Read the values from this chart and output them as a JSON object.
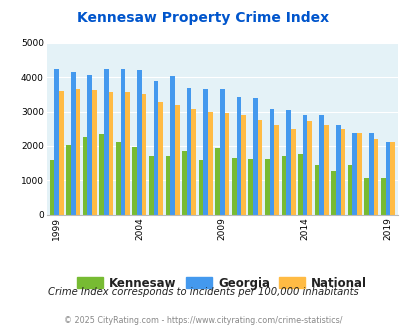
{
  "title": "Kennesaw Property Crime Index",
  "title_color": "#0055cc",
  "years": [
    1999,
    2000,
    2001,
    2002,
    2003,
    2004,
    2005,
    2006,
    2007,
    2008,
    2009,
    2010,
    2011,
    2012,
    2013,
    2014,
    2015,
    2016,
    2017,
    2018,
    2019
  ],
  "kennesaw": [
    1600,
    2030,
    2260,
    2360,
    2100,
    1980,
    1700,
    1700,
    1850,
    1590,
    1950,
    1640,
    1620,
    1610,
    1700,
    1760,
    1450,
    1260,
    1440,
    1050,
    1060
  ],
  "georgia": [
    4250,
    4140,
    4060,
    4250,
    4230,
    4200,
    3900,
    4040,
    3700,
    3670,
    3650,
    3430,
    3380,
    3060,
    3040,
    2900,
    2900,
    2600,
    2380,
    2380,
    2120
  ],
  "national": [
    3610,
    3650,
    3640,
    3580,
    3560,
    3510,
    3270,
    3200,
    3070,
    2980,
    2960,
    2900,
    2760,
    2600,
    2500,
    2720,
    2610,
    2490,
    2370,
    2200,
    2120
  ],
  "kennesaw_color": "#77bb33",
  "georgia_color": "#4499ee",
  "national_color": "#ffbb44",
  "bg_color": "#e4f2f7",
  "fig_bg": "#ffffff",
  "ylim": [
    0,
    5000
  ],
  "yticks": [
    0,
    1000,
    2000,
    3000,
    4000,
    5000
  ],
  "xlabel_ticks": [
    1999,
    2004,
    2009,
    2014,
    2019
  ],
  "note": "Crime Index corresponds to incidents per 100,000 inhabitants",
  "credit": "© 2025 CityRating.com - https://www.cityrating.com/crime-statistics/",
  "note_color": "#222222",
  "credit_color": "#888888",
  "bar_width": 0.28,
  "legend_labels": [
    "Kennesaw",
    "Georgia",
    "National"
  ]
}
